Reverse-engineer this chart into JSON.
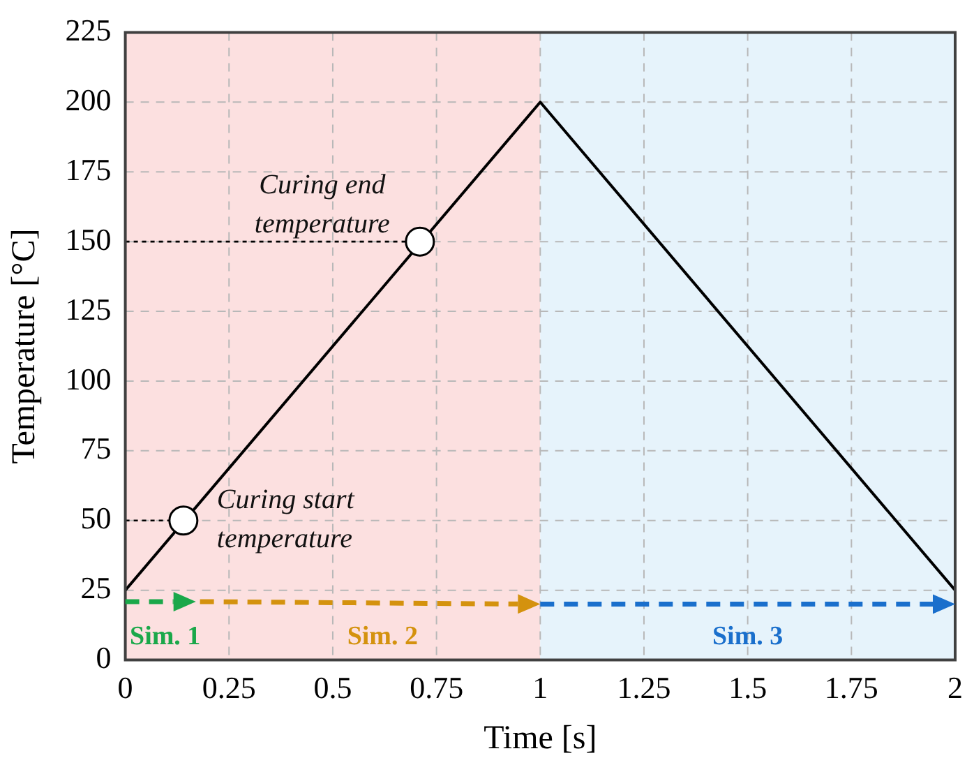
{
  "chart_data": {
    "type": "line",
    "xlabel": "Time [s]",
    "ylabel": "Temperature [°C]",
    "xlim": [
      0,
      2
    ],
    "xticks": [
      0,
      0.25,
      0.5,
      0.75,
      1,
      1.25,
      1.5,
      1.75,
      2
    ],
    "ylim": [
      0,
      225
    ],
    "yticks": [
      0,
      25,
      50,
      75,
      100,
      125,
      150,
      175,
      200,
      225
    ],
    "grid": true,
    "marker": "none",
    "series": [
      {
        "color": "#000000",
        "x": [
          0,
          1,
          2
        ],
        "values": [
          25,
          200,
          25
        ],
        "line_style": "solid"
      },
      {
        "color": "#000000",
        "x": [
          0,
          0.14
        ],
        "values": [
          50,
          50
        ],
        "line_style": "dotted"
      },
      {
        "color": "#000000",
        "x": [
          0,
          0.71
        ],
        "values": [
          150,
          150
        ],
        "line_style": "dotted"
      },
      {
        "type": "scatter",
        "color": "#000000",
        "x": [
          0.14,
          0.71
        ],
        "values": [
          50,
          150
        ],
        "marker": "circle"
      }
    ],
    "bands": [
      {
        "axis": "x",
        "from": 0,
        "to": 1,
        "color": "#fce0e0"
      },
      {
        "axis": "x",
        "from": 1,
        "to": 2,
        "color": "#e6f3fb"
      }
    ],
    "annotations": [
      {
        "text": "Curing start temperature",
        "x": 0.14,
        "y": 50
      },
      {
        "text": "Curing end temperature",
        "x": 0.71,
        "y": 150
      },
      "Sim. 1",
      "Sim. 2",
      "Sim. 3"
    ]
  }
}
